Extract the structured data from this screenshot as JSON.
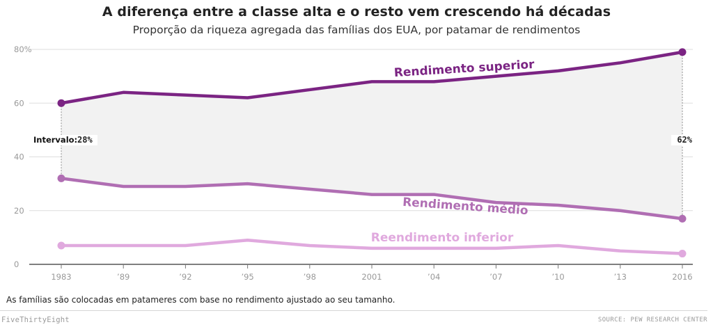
{
  "title": "A diferença entre a classe alta e o resto vem crescendo há décadas",
  "subtitle": "Proporção da riqueza agregada das famílias dos EUA, por patamar de rendimentos",
  "footnote": "As famílias são colocadas em patameres com base no rendimento ajustado ao seu tamanho.",
  "brand": "FiveThirtyEight",
  "source": "SOURCE: PEW RESEARCH CENTER",
  "chart_data": {
    "type": "line",
    "x": [
      1983,
      1989,
      1992,
      1995,
      1998,
      2001,
      2004,
      2007,
      2010,
      2013,
      2016
    ],
    "x_tick_labels": [
      "1983",
      "’89",
      "’92",
      "’95",
      "’98",
      "2001",
      "’04",
      "’07",
      "’10",
      "’13",
      "2016"
    ],
    "y_ticks": [
      0,
      20,
      40,
      60,
      80
    ],
    "y_tick_labels": [
      "0",
      "20",
      "40",
      "60",
      "80%"
    ],
    "ylim": [
      0,
      80
    ],
    "grid": true,
    "series": [
      {
        "name": "Rendimento superior",
        "color": "#7b2483",
        "values": [
          60,
          64,
          63,
          62,
          65,
          68,
          68,
          70,
          72,
          75,
          79
        ]
      },
      {
        "name": "Rendimento médio",
        "color": "#b06eb3",
        "values": [
          32,
          29,
          29,
          30,
          28,
          26,
          26,
          23,
          22,
          20,
          17
        ]
      },
      {
        "name": "Reendimento inferior",
        "color": "#e0a9de",
        "values": [
          7,
          7,
          7,
          9,
          7,
          6,
          6,
          6,
          7,
          5,
          4
        ]
      }
    ],
    "gap_annotation": {
      "label": "Intervalo:",
      "start": "28%",
      "end": "62%"
    }
  }
}
